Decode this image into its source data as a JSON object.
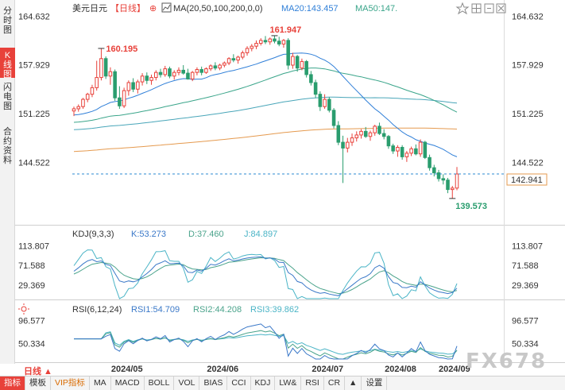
{
  "left_tabs": [
    {
      "label": "分时图",
      "active": false
    },
    {
      "label": "K线图",
      "active": true
    },
    {
      "label": "闪电图",
      "active": false
    },
    {
      "label": "合约资料",
      "active": false
    }
  ],
  "header": {
    "symbol": "美元日元",
    "period": "【日线】",
    "plus": "⊕",
    "ma_label": "MA(20,50,100,200,0,0)",
    "ma20_label": "MA20:143.457",
    "ma50_label": "MA50:147."
  },
  "toolbar_icons": [
    "star-icon",
    "grid-icon",
    "minimize-icon",
    "close-icon"
  ],
  "main_chart": {
    "y_ticks": [
      "164.632",
      "157.929",
      "151.225",
      "144.522"
    ],
    "ylim": [
      136.5,
      166.2
    ],
    "high_label": "161.947",
    "prev_high_label": "160.195",
    "low_label": "139.573",
    "current_price": "142.941",
    "current_value": 142.941
  },
  "kdj": {
    "label": "KDJ(9,3,3)",
    "k_label": "K:53.273",
    "d_label": "D:37.460",
    "j_label": "J:84.897",
    "y_ticks": [
      "113.807",
      "71.588",
      "29.369"
    ]
  },
  "rsi": {
    "label": "RSI(6,12,24)",
    "rsi1_label": "RSI1:54.709",
    "rsi2_label": "RSI2:44.208",
    "rsi3_label": "RSI3:39.862",
    "y_ticks": [
      "96.577",
      "50.334"
    ]
  },
  "x_ticks": [
    "2024/05",
    "2024/06",
    "2024/07",
    "2024/08",
    "2024/09"
  ],
  "period_button": "日线 ▲",
  "bottom_tabs": [
    "指标",
    "模板",
    "VIP指标",
    "MA",
    "MACD",
    "BOLL",
    "VOL",
    "BIAS",
    "CCI",
    "KDJ",
    "LW&",
    "RSI",
    "CR",
    "▲",
    "设置"
  ],
  "watermark": "FX678",
  "colors": {
    "up": "#e8413a",
    "down": "#2a9d6e",
    "ma20": "#2f7fd8",
    "ma50": "#3aa58a",
    "ma100": "#49a6b9",
    "ma200": "#e59a4f",
    "price_line": "#2b8ad1",
    "kdj_k": "#3a78c8",
    "kdj_d": "#4aa38b",
    "kdj_j": "#4ab4c6"
  },
  "chart_data": {
    "type": "candlestick",
    "x_ticks": [
      "2024/05",
      "2024/06",
      "2024/07",
      "2024/08",
      "2024/09"
    ],
    "candles_ohlc": [
      [
        151.6,
        152.2,
        150.9,
        151.9
      ],
      [
        151.9,
        152.5,
        151.5,
        152.2
      ],
      [
        152.2,
        153.4,
        151.9,
        153.2
      ],
      [
        153.2,
        154.1,
        152.8,
        153.9
      ],
      [
        153.9,
        155.2,
        153.5,
        154.8
      ],
      [
        154.8,
        158.5,
        154.4,
        156.2
      ],
      [
        156.2,
        160.2,
        155.8,
        158.8
      ],
      [
        158.8,
        159.1,
        156.0,
        156.4
      ],
      [
        156.4,
        157.6,
        155.2,
        157.0
      ],
      [
        157.0,
        157.3,
        153.0,
        153.4
      ],
      [
        153.4,
        155.0,
        151.9,
        152.3
      ],
      [
        152.3,
        154.8,
        152.0,
        154.4
      ],
      [
        154.4,
        155.8,
        153.7,
        155.5
      ],
      [
        155.5,
        156.1,
        154.2,
        154.6
      ],
      [
        154.6,
        155.9,
        154.0,
        155.6
      ],
      [
        155.6,
        156.8,
        155.1,
        156.4
      ],
      [
        156.4,
        156.9,
        155.3,
        155.8
      ],
      [
        155.8,
        156.6,
        155.2,
        156.2
      ],
      [
        156.2,
        157.2,
        155.8,
        156.9
      ],
      [
        156.9,
        157.4,
        156.2,
        156.6
      ],
      [
        156.6,
        157.8,
        156.3,
        157.4
      ],
      [
        157.4,
        157.7,
        156.1,
        156.4
      ],
      [
        156.4,
        157.2,
        155.9,
        156.9
      ],
      [
        156.9,
        157.6,
        156.5,
        157.2
      ],
      [
        157.2,
        157.9,
        156.6,
        156.8
      ],
      [
        156.8,
        157.4,
        155.9,
        156.0
      ],
      [
        156.0,
        157.1,
        155.7,
        156.9
      ],
      [
        156.9,
        157.6,
        156.5,
        157.3
      ],
      [
        157.3,
        157.7,
        156.5,
        156.9
      ],
      [
        156.9,
        157.6,
        156.7,
        157.4
      ],
      [
        157.4,
        158.0,
        157.1,
        157.8
      ],
      [
        157.8,
        158.3,
        157.2,
        157.5
      ],
      [
        157.5,
        158.1,
        157.2,
        157.9
      ],
      [
        157.9,
        158.4,
        157.6,
        158.2
      ],
      [
        158.2,
        159.0,
        157.9,
        158.8
      ],
      [
        158.8,
        159.4,
        158.3,
        158.6
      ],
      [
        158.6,
        159.2,
        158.1,
        159.0
      ],
      [
        159.0,
        159.9,
        158.7,
        159.6
      ],
      [
        159.6,
        160.5,
        159.2,
        160.2
      ],
      [
        160.2,
        160.8,
        159.8,
        160.5
      ],
      [
        160.5,
        161.3,
        160.1,
        160.9
      ],
      [
        160.9,
        161.6,
        160.6,
        161.3
      ],
      [
        161.3,
        161.9,
        160.8,
        161.1
      ],
      [
        161.1,
        161.7,
        160.7,
        161.5
      ],
      [
        161.5,
        161.95,
        160.9,
        161.2
      ],
      [
        161.2,
        161.8,
        160.5,
        160.8
      ],
      [
        160.8,
        161.5,
        160.3,
        161.3
      ],
      [
        161.3,
        161.6,
        157.3,
        157.9
      ],
      [
        157.9,
        159.6,
        157.4,
        159.1
      ],
      [
        159.1,
        159.3,
        157.0,
        157.5
      ],
      [
        157.5,
        158.8,
        157.2,
        158.4
      ],
      [
        158.4,
        158.6,
        156.2,
        156.6
      ],
      [
        156.6,
        157.1,
        155.1,
        155.5
      ],
      [
        155.5,
        155.9,
        153.4,
        153.9
      ],
      [
        153.9,
        154.3,
        151.6,
        152.2
      ],
      [
        152.2,
        153.9,
        151.9,
        153.2
      ],
      [
        153.2,
        153.5,
        151.4,
        151.7
      ],
      [
        151.7,
        152.0,
        149.2,
        149.6
      ],
      [
        149.6,
        150.2,
        146.9,
        147.3
      ],
      [
        147.3,
        148.2,
        141.7,
        146.5
      ],
      [
        146.5,
        147.9,
        145.9,
        147.3
      ],
      [
        147.3,
        148.5,
        146.8,
        147.9
      ],
      [
        147.9,
        148.8,
        147.4,
        148.3
      ],
      [
        148.3,
        149.1,
        147.8,
        148.8
      ],
      [
        148.8,
        149.4,
        147.9,
        148.1
      ],
      [
        148.1,
        148.9,
        147.5,
        148.6
      ],
      [
        148.6,
        149.7,
        148.2,
        149.5
      ],
      [
        149.5,
        150.0,
        148.3,
        148.5
      ],
      [
        148.5,
        149.1,
        147.7,
        148.1
      ],
      [
        148.1,
        148.3,
        146.4,
        146.8
      ],
      [
        146.8,
        147.1,
        145.7,
        146.1
      ],
      [
        146.1,
        146.9,
        145.3,
        146.6
      ],
      [
        146.6,
        146.9,
        144.9,
        145.3
      ],
      [
        145.3,
        146.1,
        144.6,
        145.8
      ],
      [
        145.8,
        146.7,
        145.4,
        146.4
      ],
      [
        146.4,
        147.0,
        145.5,
        145.7
      ],
      [
        145.7,
        147.7,
        145.3,
        147.3
      ],
      [
        147.3,
        147.5,
        145.0,
        145.2
      ],
      [
        145.2,
        145.6,
        143.4,
        143.8
      ],
      [
        143.8,
        144.2,
        142.6,
        143.1
      ],
      [
        143.1,
        143.5,
        141.9,
        142.3
      ],
      [
        142.3,
        142.9,
        141.5,
        142.1
      ],
      [
        142.1,
        142.4,
        140.3,
        140.8
      ],
      [
        140.8,
        141.3,
        139.57,
        141.0
      ],
      [
        141.0,
        143.9,
        140.7,
        142.94
      ]
    ]
  }
}
